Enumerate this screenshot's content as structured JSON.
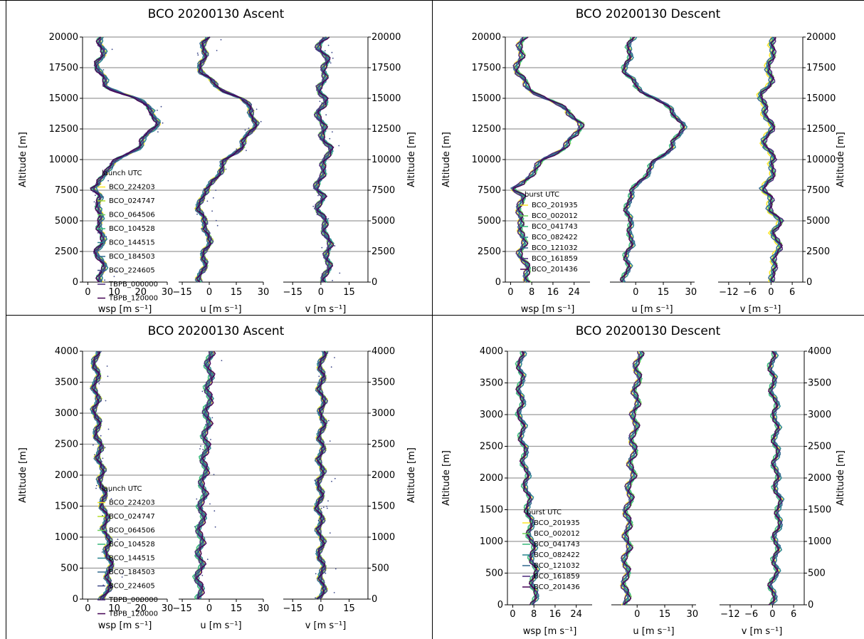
{
  "colors": {
    "profiles": [
      "#fde725",
      "#b5de2b",
      "#6ece58",
      "#35b779",
      "#1f9e89",
      "#26828e",
      "#31688e",
      "#3e4989",
      "#482878",
      "#440154"
    ]
  },
  "chart_data": [
    {
      "type": "line",
      "title": "BCO 20200130 Ascent",
      "ylabel": "Altitude [m]",
      "ylim": [
        0,
        20000
      ],
      "yticks": [
        "0",
        "2500",
        "5000",
        "7500",
        "10000",
        "12500",
        "15000",
        "17500",
        "20000"
      ],
      "yticks_values": [
        0,
        2500,
        5000,
        7500,
        10000,
        12500,
        15000,
        17500,
        20000
      ],
      "grid": true,
      "legend": {
        "title": "launch UTC",
        "entries": [
          "BCO_224203",
          "BCO_024747",
          "BCO_064506",
          "BCO_104528",
          "BCO_144515",
          "BCO_184503",
          "BCO_224605",
          "TBPB_000000",
          "TBPB_120000"
        ],
        "placement": "lower-left"
      },
      "panels": [
        {
          "xlabel": "wsp [m s⁻¹]",
          "xlim": [
            -2,
            30
          ],
          "xticks": [
            0,
            10,
            20,
            30
          ],
          "xtick_labels": [
            "0",
            "10",
            "20",
            "30"
          ],
          "profile": [
            [
              0,
              5
            ],
            [
              1000,
              6
            ],
            [
              2500,
              4
            ],
            [
              4000,
              6
            ],
            [
              5000,
              4
            ],
            [
              6000,
              5
            ],
            [
              7000,
              4
            ],
            [
              7600,
              2
            ],
            [
              8000,
              5
            ],
            [
              9000,
              6
            ],
            [
              10000,
              12
            ],
            [
              11000,
              19
            ],
            [
              12000,
              23
            ],
            [
              13000,
              26
            ],
            [
              14000,
              25
            ],
            [
              15000,
              18
            ],
            [
              16000,
              7
            ],
            [
              17000,
              5
            ],
            [
              18000,
              4
            ],
            [
              19000,
              6
            ],
            [
              20000,
              5
            ]
          ]
        },
        {
          "xlabel": "u [m s⁻¹]",
          "xlim": [
            -17,
            30
          ],
          "xticks": [
            -15,
            0,
            15,
            30
          ],
          "xtick_labels": [
            "−15",
            "0",
            "15",
            "30"
          ],
          "profile": [
            [
              0,
              -5
            ],
            [
              1000,
              -4
            ],
            [
              2500,
              -2
            ],
            [
              4000,
              0
            ],
            [
              5000,
              -4
            ],
            [
              6000,
              -5
            ],
            [
              7000,
              -5
            ],
            [
              7600,
              -1
            ],
            [
              8000,
              2
            ],
            [
              9000,
              5
            ],
            [
              10000,
              10
            ],
            [
              11000,
              17
            ],
            [
              12000,
              22
            ],
            [
              13000,
              25
            ],
            [
              14000,
              24
            ],
            [
              15000,
              17
            ],
            [
              16000,
              4
            ],
            [
              17000,
              -4
            ],
            [
              18000,
              -4
            ],
            [
              19000,
              -3
            ],
            [
              20000,
              -1
            ]
          ]
        },
        {
          "xlabel": "v [m s⁻¹]",
          "xlim": [
            -20,
            25
          ],
          "xticks": [
            -15,
            0,
            15
          ],
          "xtick_labels": [
            "−15",
            "0",
            "15"
          ],
          "profile": [
            [
              0,
              2
            ],
            [
              1000,
              3
            ],
            [
              2500,
              4
            ],
            [
              4000,
              3
            ],
            [
              5000,
              1
            ],
            [
              6000,
              -1
            ],
            [
              7000,
              0
            ],
            [
              7600,
              -2
            ],
            [
              8000,
              -1
            ],
            [
              9000,
              0
            ],
            [
              10000,
              3
            ],
            [
              11000,
              4
            ],
            [
              12000,
              1
            ],
            [
              13000,
              0
            ],
            [
              14000,
              -1
            ],
            [
              15000,
              2
            ],
            [
              16000,
              -1
            ],
            [
              17000,
              2
            ],
            [
              18000,
              3
            ],
            [
              19000,
              -1
            ],
            [
              20000,
              2
            ]
          ]
        }
      ]
    },
    {
      "type": "line",
      "title": "BCO 20200130 Descent",
      "ylabel": "Altitude [m]",
      "ylim": [
        0,
        20000
      ],
      "yticks": [
        "0",
        "2500",
        "5000",
        "7500",
        "10000",
        "12500",
        "15000",
        "17500",
        "20000"
      ],
      "yticks_values": [
        0,
        2500,
        5000,
        7500,
        10000,
        12500,
        15000,
        17500,
        20000
      ],
      "grid": true,
      "legend": {
        "title": "burst UTC",
        "entries": [
          "BCO_201935",
          "BCO_002012",
          "BCO_041743",
          "BCO_082422",
          "BCO_121032",
          "BCO_161859",
          "BCO_201436"
        ],
        "placement": "lower-left"
      },
      "panels": [
        {
          "xlabel": "wsp [m s⁻¹]",
          "xlim": [
            -2,
            30
          ],
          "xticks": [
            0,
            8,
            16,
            24
          ],
          "xtick_labels": [
            "0",
            "8",
            "16",
            "24"
          ],
          "profile": [
            [
              0,
              7
            ],
            [
              1000,
              6
            ],
            [
              2500,
              4
            ],
            [
              4000,
              5
            ],
            [
              5000,
              3
            ],
            [
              6000,
              4
            ],
            [
              7000,
              4
            ],
            [
              7600,
              1
            ],
            [
              8000,
              5
            ],
            [
              9000,
              8
            ],
            [
              10000,
              13
            ],
            [
              11000,
              20
            ],
            [
              12000,
              25
            ],
            [
              13000,
              26
            ],
            [
              14000,
              22
            ],
            [
              15000,
              13
            ],
            [
              16000,
              6
            ],
            [
              17000,
              3
            ],
            [
              18000,
              3
            ],
            [
              19000,
              4
            ],
            [
              20000,
              5
            ]
          ]
        },
        {
          "xlabel": "u [m s⁻¹]",
          "xlim": [
            -14,
            32
          ],
          "xticks": [
            0,
            15,
            30
          ],
          "xtick_labels": [
            "0",
            "15",
            "30"
          ],
          "profile": [
            [
              0,
              -6
            ],
            [
              1000,
              -5
            ],
            [
              2500,
              -4
            ],
            [
              4000,
              -2
            ],
            [
              5000,
              -4
            ],
            [
              6000,
              -4
            ],
            [
              7000,
              -4
            ],
            [
              7600,
              -1
            ],
            [
              8000,
              2
            ],
            [
              9000,
              6
            ],
            [
              10000,
              12
            ],
            [
              11000,
              19
            ],
            [
              12000,
              24
            ],
            [
              13000,
              25
            ],
            [
              14000,
              20
            ],
            [
              15000,
              10
            ],
            [
              16000,
              0
            ],
            [
              17000,
              -5
            ],
            [
              18000,
              -5
            ],
            [
              19000,
              -3
            ],
            [
              20000,
              -2
            ]
          ]
        },
        {
          "xlabel": "v [m s⁻¹]",
          "xlim": [
            -15,
            9
          ],
          "xticks": [
            -12,
            -6,
            0,
            6
          ],
          "xtick_labels": [
            "−12",
            "−6",
            "0",
            "6"
          ],
          "profile": [
            [
              0,
              1
            ],
            [
              1000,
              0
            ],
            [
              2500,
              2
            ],
            [
              4000,
              1
            ],
            [
              5000,
              2
            ],
            [
              6000,
              0
            ],
            [
              7000,
              -1
            ],
            [
              7600,
              -2
            ],
            [
              8000,
              -1
            ],
            [
              9000,
              0
            ],
            [
              10000,
              1
            ],
            [
              11000,
              -2
            ],
            [
              12000,
              -1
            ],
            [
              13000,
              0
            ],
            [
              14000,
              -2
            ],
            [
              15000,
              -3
            ],
            [
              16000,
              -1
            ],
            [
              17000,
              0
            ],
            [
              18000,
              -1
            ],
            [
              19000,
              1
            ],
            [
              20000,
              0
            ]
          ]
        }
      ]
    },
    {
      "type": "line",
      "title": "BCO 20200130 Ascent",
      "ylabel": "Altitude [m]",
      "ylim": [
        0,
        4000
      ],
      "yticks": [
        "0",
        "500",
        "1000",
        "1500",
        "2000",
        "2500",
        "3000",
        "3500",
        "4000"
      ],
      "yticks_values": [
        0,
        500,
        1000,
        1500,
        2000,
        2500,
        3000,
        3500,
        4000
      ],
      "grid": true,
      "legend": {
        "title": "launch UTC",
        "entries": [
          "BCO_224203",
          "BCO_024747",
          "BCO_064506",
          "BCO_104528",
          "BCO_144515",
          "BCO_184503",
          "BCO_224605",
          "TBPB_000000",
          "TBPB_120000"
        ],
        "placement": "lower-left"
      },
      "panels": [
        {
          "xlabel": "wsp [m s⁻¹]",
          "xlim": [
            -2,
            30
          ],
          "xticks": [
            0,
            10,
            20,
            30
          ],
          "xtick_labels": [
            "0",
            "10",
            "20",
            "30"
          ],
          "profile": [
            [
              0,
              6
            ],
            [
              300,
              8
            ],
            [
              600,
              8
            ],
            [
              1000,
              7
            ],
            [
              1500,
              6
            ],
            [
              2000,
              5
            ],
            [
              2500,
              4
            ],
            [
              3000,
              3
            ],
            [
              3500,
              3
            ],
            [
              4000,
              3
            ]
          ]
        },
        {
          "xlabel": "u [m s⁻¹]",
          "xlim": [
            -17,
            30
          ],
          "xticks": [
            -15,
            0,
            15,
            30
          ],
          "xtick_labels": [
            "−15",
            "0",
            "15",
            "30"
          ],
          "profile": [
            [
              0,
              -5
            ],
            [
              300,
              -6
            ],
            [
              600,
              -5
            ],
            [
              1000,
              -5
            ],
            [
              1500,
              -4
            ],
            [
              2000,
              -3
            ],
            [
              2500,
              -2
            ],
            [
              3000,
              -1
            ],
            [
              3500,
              0
            ],
            [
              4000,
              0
            ]
          ]
        },
        {
          "xlabel": "v [m s⁻¹]",
          "xlim": [
            -20,
            25
          ],
          "xticks": [
            -15,
            0,
            15
          ],
          "xtick_labels": [
            "−15",
            "0",
            "15"
          ],
          "profile": [
            [
              0,
              0
            ],
            [
              300,
              1
            ],
            [
              600,
              0
            ],
            [
              1000,
              0
            ],
            [
              1500,
              -1
            ],
            [
              2000,
              0
            ],
            [
              2500,
              0
            ],
            [
              3000,
              1
            ],
            [
              3500,
              0
            ],
            [
              4000,
              1
            ]
          ]
        }
      ]
    },
    {
      "type": "line",
      "title": "BCO 20200130 Descent",
      "ylabel": "Altitude [m]",
      "ylim": [
        0,
        4000
      ],
      "yticks": [
        "0",
        "500",
        "1000",
        "1500",
        "2000",
        "2500",
        "3000",
        "3500",
        "4000"
      ],
      "yticks_values": [
        0,
        500,
        1000,
        1500,
        2000,
        2500,
        3000,
        3500,
        4000
      ],
      "grid": true,
      "legend": {
        "title": "burst UTC",
        "entries": [
          "BCO_201935",
          "BCO_002012",
          "BCO_041743",
          "BCO_082422",
          "BCO_121032",
          "BCO_161859",
          "BCO_201436"
        ],
        "placement": "lower-left"
      },
      "panels": [
        {
          "xlabel": "wsp [m s⁻¹]",
          "xlim": [
            -2,
            30
          ],
          "xticks": [
            0,
            8,
            16,
            24
          ],
          "xtick_labels": [
            "0",
            "8",
            "16",
            "24"
          ],
          "profile": [
            [
              0,
              8
            ],
            [
              300,
              8
            ],
            [
              600,
              8
            ],
            [
              1000,
              7
            ],
            [
              1500,
              6
            ],
            [
              2000,
              5
            ],
            [
              2500,
              4
            ],
            [
              3000,
              3
            ],
            [
              3500,
              3
            ],
            [
              4000,
              3
            ]
          ]
        },
        {
          "xlabel": "u [m s⁻¹]",
          "xlim": [
            -14,
            32
          ],
          "xticks": [
            0,
            15,
            30
          ],
          "xtick_labels": [
            "0",
            "15",
            "30"
          ],
          "profile": [
            [
              0,
              -6
            ],
            [
              300,
              -6
            ],
            [
              600,
              -6
            ],
            [
              1000,
              -5
            ],
            [
              1500,
              -5
            ],
            [
              2000,
              -3
            ],
            [
              2500,
              -2
            ],
            [
              3000,
              -1
            ],
            [
              3500,
              0
            ],
            [
              4000,
              1
            ]
          ]
        },
        {
          "xlabel": "v [m s⁻¹]",
          "xlim": [
            -15,
            9
          ],
          "xticks": [
            -12,
            -6,
            0,
            6
          ],
          "xtick_labels": [
            "−12",
            "−6",
            "0",
            "6"
          ],
          "profile": [
            [
              0,
              0
            ],
            [
              300,
              0
            ],
            [
              600,
              1
            ],
            [
              1000,
              1
            ],
            [
              1500,
              2
            ],
            [
              2000,
              1
            ],
            [
              2500,
              1
            ],
            [
              3000,
              1
            ],
            [
              3500,
              0
            ],
            [
              4000,
              0
            ]
          ]
        }
      ]
    }
  ]
}
